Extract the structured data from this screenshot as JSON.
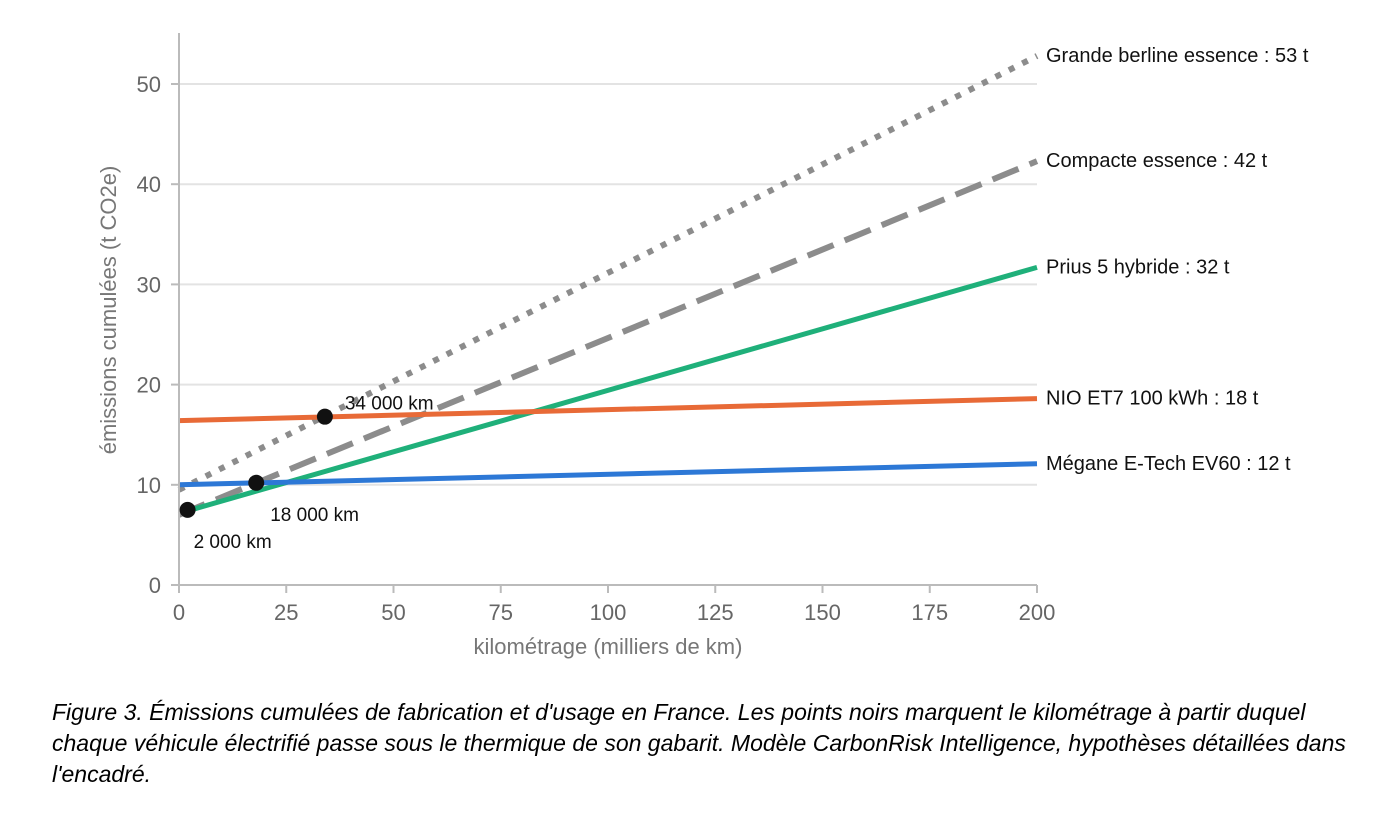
{
  "chart_data": {
    "type": "line",
    "xlabel": "kilométrage (milliers de km)",
    "ylabel": "émissions cumulées (t CO2e)",
    "xlim": [
      0,
      200
    ],
    "ylim": [
      0,
      55
    ],
    "x_ticks": [
      0,
      25,
      50,
      75,
      100,
      125,
      150,
      175,
      200
    ],
    "x_tick_labels": [
      "0",
      "25",
      "50",
      "75",
      "100",
      "125",
      "150",
      "175",
      "200"
    ],
    "y_ticks": [
      0,
      10,
      20,
      30,
      40,
      50
    ],
    "y_tick_labels": [
      "0",
      "10",
      "20",
      "30",
      "40",
      "50"
    ],
    "grid": "horizontal",
    "series": [
      {
        "name": "Grande berline essence : 53 t",
        "x": [
          0,
          200
        ],
        "values": [
          9.5,
          52.8
        ],
        "color": "#8c8c8c",
        "style": "dotted"
      },
      {
        "name": "Compacte essence : 42 t",
        "x": [
          0,
          200
        ],
        "values": [
          7.0,
          42.3
        ],
        "color": "#8c8c8c",
        "style": "dashed"
      },
      {
        "name": "Prius 5 hybride : 32 t",
        "x": [
          2,
          200
        ],
        "values": [
          7.4,
          31.7
        ],
        "color": "#1fb07a",
        "style": "solid"
      },
      {
        "name": "NIO ET7 100 kWh : 18 t",
        "x": [
          0,
          200
        ],
        "values": [
          16.4,
          18.6
        ],
        "color": "#e86a37",
        "style": "solid"
      },
      {
        "name": "Mégane E-Tech EV60 : 12 t",
        "x": [
          0,
          200
        ],
        "values": [
          10.0,
          12.1
        ],
        "color": "#2d78d6",
        "style": "solid"
      }
    ],
    "crossover_points": [
      {
        "x": 34,
        "y": 16.8,
        "label": "34 000 km"
      },
      {
        "x": 18,
        "y": 10.2,
        "label": "18 000 km"
      },
      {
        "x": 2,
        "y": 7.5,
        "label": "2 000 km"
      }
    ]
  },
  "caption": "Figure 3. Émissions cumulées de fabrication et d'usage en France. Les points noirs marquent le kilométrage à partir duquel chaque véhicule électrifié passe sous le thermique de son gabarit. Modèle CarbonRisk Intelligence, hypothèses détaillées dans l'encadré."
}
